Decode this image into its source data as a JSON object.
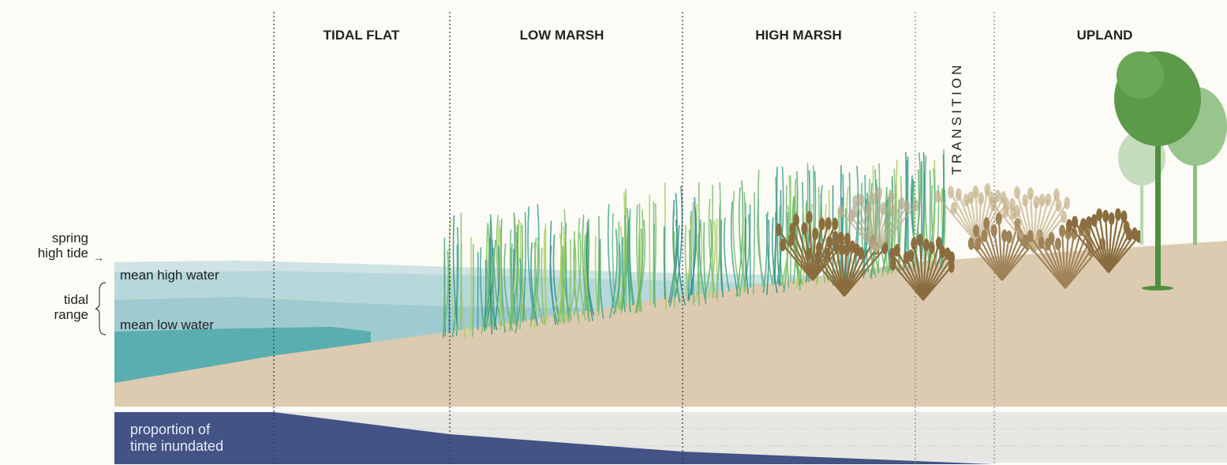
{
  "zones": {
    "tidal_flat": "TIDAL FLAT",
    "low_marsh": "LOW MARSH",
    "high_marsh": "HIGH MARSH",
    "transition": "TRANSITION",
    "upland": "UPLAND"
  },
  "levels": {
    "spring_high_tide": [
      "spring",
      "high tide"
    ],
    "mean_high_water": "mean high water",
    "tidal_range": [
      "tidal",
      "range"
    ],
    "mean_low_water": "mean low water"
  },
  "inundation": {
    "label": [
      "proportion of",
      "time inundated"
    ]
  }
}
